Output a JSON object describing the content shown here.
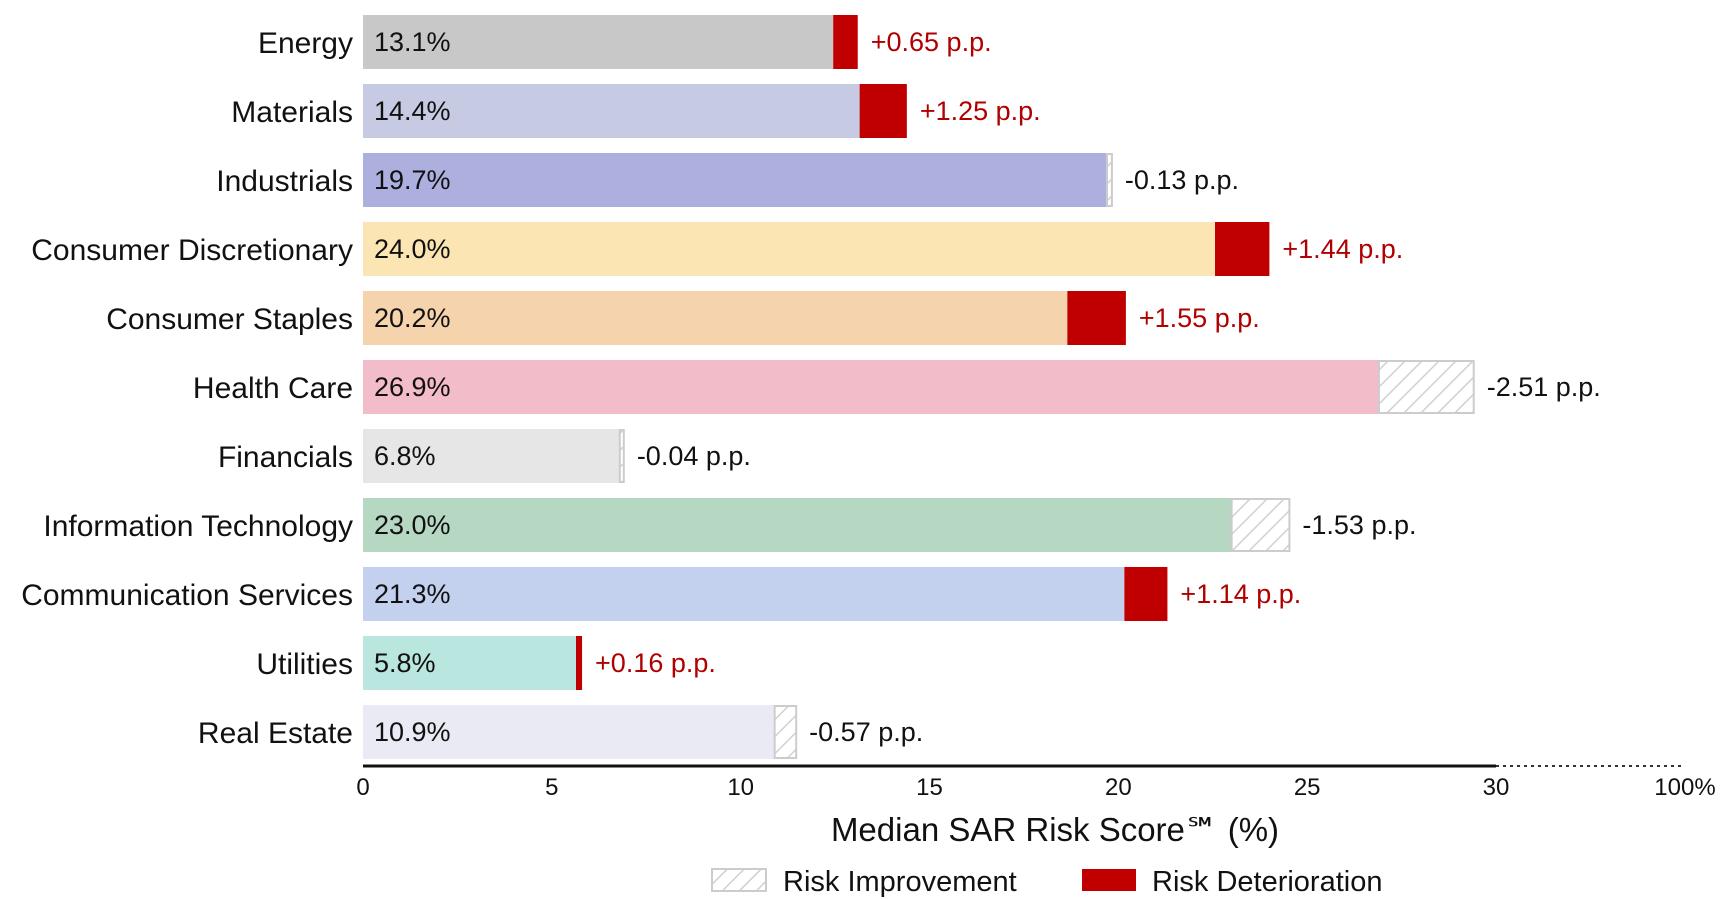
{
  "chart_data": {
    "type": "bar",
    "orientation": "horizontal",
    "xlabel": "Median SAR Risk Score℠ (%)",
    "xlim": [
      0,
      30
    ],
    "xticks": [
      "0",
      "5",
      "10",
      "15",
      "20",
      "25",
      "30"
    ],
    "axis_end_label": "100%",
    "categories": [
      "Energy",
      "Materials",
      "Industrials",
      "Consumer Discretionary",
      "Consumer Staples",
      "Health Care",
      "Financials",
      "Information Technology",
      "Communication Services",
      "Utilities",
      "Real Estate"
    ],
    "values": [
      13.1,
      14.4,
      19.7,
      24.0,
      20.2,
      26.9,
      6.8,
      23.0,
      21.3,
      5.8,
      10.9
    ],
    "value_labels": [
      "13.1%",
      "14.4%",
      "19.7%",
      "24.0%",
      "20.2%",
      "26.9%",
      "6.8%",
      "23.0%",
      "21.3%",
      "5.8%",
      "10.9%"
    ],
    "changes": [
      0.65,
      1.25,
      -0.13,
      1.44,
      1.55,
      -2.51,
      -0.04,
      -1.53,
      1.14,
      0.16,
      -0.57
    ],
    "change_labels": [
      "+0.65 p.p.",
      "+1.25 p.p.",
      "-0.13 p.p.",
      "+1.44 p.p.",
      "+1.55 p.p.",
      "-2.51 p.p.",
      "-0.04 p.p.",
      "-1.53 p.p.",
      "+1.14 p.p.",
      "+0.16 p.p.",
      "-0.57 p.p."
    ],
    "bar_colors": [
      "#c8c8c8",
      "#c6cbe3",
      "#adb0de",
      "#fbe6b3",
      "#f5d3ad",
      "#f2bcc8",
      "#e6e6e6",
      "#b6d8c3",
      "#c3d0ee",
      "#b9e6de",
      "#eaeaf5"
    ],
    "deterioration_color": "#c00000",
    "improvement_color": "#cccccc",
    "positive_label_color": "#b00000",
    "negative_label_color": "#111111",
    "legend": [
      "Risk Improvement",
      "Risk Deterioration"
    ]
  }
}
